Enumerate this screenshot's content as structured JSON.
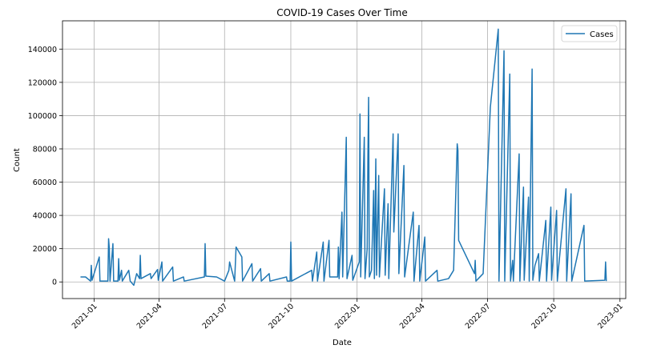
{
  "chart_data": {
    "type": "line",
    "title": "COVID-19 Cases Over Time",
    "xlabel": "Date",
    "ylabel": "Count",
    "xlim": [
      "2020-11-18",
      "2023-01-09"
    ],
    "ylim": [
      -10000,
      157000
    ],
    "grid": true,
    "legend_position": "top-right",
    "x_ticks": [
      "2021-01-01",
      "2021-04-01",
      "2021-07-01",
      "2021-10-01",
      "2022-01-01",
      "2022-04-01",
      "2022-07-01",
      "2022-10-01",
      "2023-01-01"
    ],
    "x_tick_labels": [
      "2021-01",
      "2021-04",
      "2021-07",
      "2021-10",
      "2022-01",
      "2022-04",
      "2022-07",
      "2022-10",
      "2023-01"
    ],
    "y_ticks": [
      0,
      20000,
      40000,
      60000,
      80000,
      100000,
      120000,
      140000
    ],
    "y_tick_labels": [
      "0",
      "20000",
      "40000",
      "60000",
      "80000",
      "100000",
      "120000",
      "140000"
    ],
    "series": [
      {
        "name": "Cases",
        "color": "#1f77b4",
        "points": [
          [
            "2020-12-13",
            3000
          ],
          [
            "2020-12-20",
            3000
          ],
          [
            "2020-12-27",
            500
          ],
          [
            "2020-12-28",
            10000
          ],
          [
            "2020-12-29",
            1000
          ],
          [
            "2021-01-08",
            15000
          ],
          [
            "2021-01-09",
            500
          ],
          [
            "2021-01-20",
            500
          ],
          [
            "2021-01-21",
            26000
          ],
          [
            "2021-01-22",
            20000
          ],
          [
            "2021-01-23",
            500
          ],
          [
            "2021-01-27",
            23000
          ],
          [
            "2021-01-28",
            500
          ],
          [
            "2021-02-03",
            500
          ],
          [
            "2021-02-04",
            14000
          ],
          [
            "2021-02-05",
            1000
          ],
          [
            "2021-02-08",
            7000
          ],
          [
            "2021-02-09",
            500
          ],
          [
            "2021-02-18",
            7000
          ],
          [
            "2021-02-20",
            500
          ],
          [
            "2021-02-25",
            -2000
          ],
          [
            "2021-03-01",
            5000
          ],
          [
            "2021-03-05",
            2000
          ],
          [
            "2021-03-06",
            16000
          ],
          [
            "2021-03-07",
            2000
          ],
          [
            "2021-03-20",
            5000
          ],
          [
            "2021-03-21",
            2000
          ],
          [
            "2021-03-30",
            7500
          ],
          [
            "2021-03-31",
            1000
          ],
          [
            "2021-04-05",
            12000
          ],
          [
            "2021-04-06",
            500
          ],
          [
            "2021-04-20",
            9000
          ],
          [
            "2021-04-21",
            500
          ],
          [
            "2021-05-05",
            3000
          ],
          [
            "2021-05-06",
            500
          ],
          [
            "2021-06-03",
            3000
          ],
          [
            "2021-06-04",
            23000
          ],
          [
            "2021-06-05",
            3500
          ],
          [
            "2021-06-20",
            3000
          ],
          [
            "2021-07-01",
            500
          ],
          [
            "2021-07-07",
            7000
          ],
          [
            "2021-07-08",
            12000
          ],
          [
            "2021-07-15",
            500
          ],
          [
            "2021-07-17",
            21000
          ],
          [
            "2021-07-25",
            15000
          ],
          [
            "2021-07-26",
            500
          ],
          [
            "2021-08-08",
            11000
          ],
          [
            "2021-08-09",
            500
          ],
          [
            "2021-08-20",
            8000
          ],
          [
            "2021-08-21",
            500
          ],
          [
            "2021-09-01",
            5000
          ],
          [
            "2021-09-02",
            500
          ],
          [
            "2021-09-25",
            3000
          ],
          [
            "2021-09-26",
            500
          ],
          [
            "2021-09-30",
            500
          ],
          [
            "2021-10-01",
            24000
          ],
          [
            "2021-10-02",
            500
          ],
          [
            "2021-10-30",
            7000
          ],
          [
            "2021-10-31",
            500
          ],
          [
            "2021-11-06",
            18000
          ],
          [
            "2021-11-07",
            500
          ],
          [
            "2021-11-15",
            24000
          ],
          [
            "2021-11-16",
            500
          ],
          [
            "2021-11-23",
            25000
          ],
          [
            "2021-11-24",
            3000
          ],
          [
            "2021-12-05",
            3000
          ],
          [
            "2021-12-06",
            21000
          ],
          [
            "2021-12-07",
            2000
          ],
          [
            "2021-12-11",
            42000
          ],
          [
            "2021-12-12",
            3000
          ],
          [
            "2021-12-17",
            87000
          ],
          [
            "2021-12-18",
            2000
          ],
          [
            "2021-12-25",
            16000
          ],
          [
            "2021-12-26",
            1000
          ],
          [
            "2022-01-04",
            12000
          ],
          [
            "2022-01-05",
            101000
          ],
          [
            "2022-01-06",
            3000
          ],
          [
            "2022-01-11",
            87000
          ],
          [
            "2022-01-12",
            2000
          ],
          [
            "2022-01-15",
            20000
          ],
          [
            "2022-01-16",
            75000
          ],
          [
            "2022-01-17",
            111000
          ],
          [
            "2022-01-18",
            3000
          ],
          [
            "2022-01-21",
            7000
          ],
          [
            "2022-01-24",
            55000
          ],
          [
            "2022-01-25",
            2000
          ],
          [
            "2022-01-27",
            74000
          ],
          [
            "2022-01-28",
            4000
          ],
          [
            "2022-01-31",
            64000
          ],
          [
            "2022-02-01",
            3000
          ],
          [
            "2022-02-08",
            56000
          ],
          [
            "2022-02-09",
            4000
          ],
          [
            "2022-02-13",
            47000
          ],
          [
            "2022-02-14",
            2000
          ],
          [
            "2022-02-20",
            89000
          ],
          [
            "2022-02-21",
            30000
          ],
          [
            "2022-02-27",
            89000
          ],
          [
            "2022-02-28",
            5000
          ],
          [
            "2022-03-07",
            70000
          ],
          [
            "2022-03-08",
            3000
          ],
          [
            "2022-03-20",
            42000
          ],
          [
            "2022-03-21",
            500
          ],
          [
            "2022-03-28",
            34000
          ],
          [
            "2022-03-29",
            500
          ],
          [
            "2022-04-05",
            27000
          ],
          [
            "2022-04-06",
            500
          ],
          [
            "2022-04-22",
            7000
          ],
          [
            "2022-04-23",
            500
          ],
          [
            "2022-05-08",
            2000
          ],
          [
            "2022-05-15",
            7000
          ],
          [
            "2022-05-20",
            83000
          ],
          [
            "2022-05-21",
            79000
          ],
          [
            "2022-05-22",
            25000
          ],
          [
            "2022-06-13",
            5000
          ],
          [
            "2022-06-14",
            13000
          ],
          [
            "2022-06-15",
            500
          ],
          [
            "2022-06-25",
            5000
          ],
          [
            "2022-07-05",
            105000
          ],
          [
            "2022-07-16",
            152000
          ],
          [
            "2022-07-17",
            500
          ],
          [
            "2022-07-24",
            139000
          ],
          [
            "2022-07-25",
            500
          ],
          [
            "2022-08-01",
            125000
          ],
          [
            "2022-08-02",
            500
          ],
          [
            "2022-08-05",
            13000
          ],
          [
            "2022-08-06",
            500
          ],
          [
            "2022-08-14",
            77000
          ],
          [
            "2022-08-15",
            500
          ],
          [
            "2022-08-20",
            57000
          ],
          [
            "2022-08-21",
            1000
          ],
          [
            "2022-08-27",
            51000
          ],
          [
            "2022-08-28",
            500
          ],
          [
            "2022-09-01",
            128000
          ],
          [
            "2022-09-02",
            1000
          ],
          [
            "2022-09-05",
            10000
          ],
          [
            "2022-09-10",
            17000
          ],
          [
            "2022-09-11",
            500
          ],
          [
            "2022-09-20",
            37000
          ],
          [
            "2022-09-21",
            500
          ],
          [
            "2022-09-27",
            45000
          ],
          [
            "2022-09-28",
            1000
          ],
          [
            "2022-10-05",
            43000
          ],
          [
            "2022-10-06",
            500
          ],
          [
            "2022-10-18",
            56000
          ],
          [
            "2022-10-19",
            500
          ],
          [
            "2022-10-25",
            53000
          ],
          [
            "2022-10-26",
            500
          ],
          [
            "2022-11-12",
            34000
          ],
          [
            "2022-11-13",
            500
          ],
          [
            "2022-12-11",
            1000
          ],
          [
            "2022-12-12",
            12000
          ],
          [
            "2022-12-13",
            500
          ]
        ]
      }
    ]
  }
}
